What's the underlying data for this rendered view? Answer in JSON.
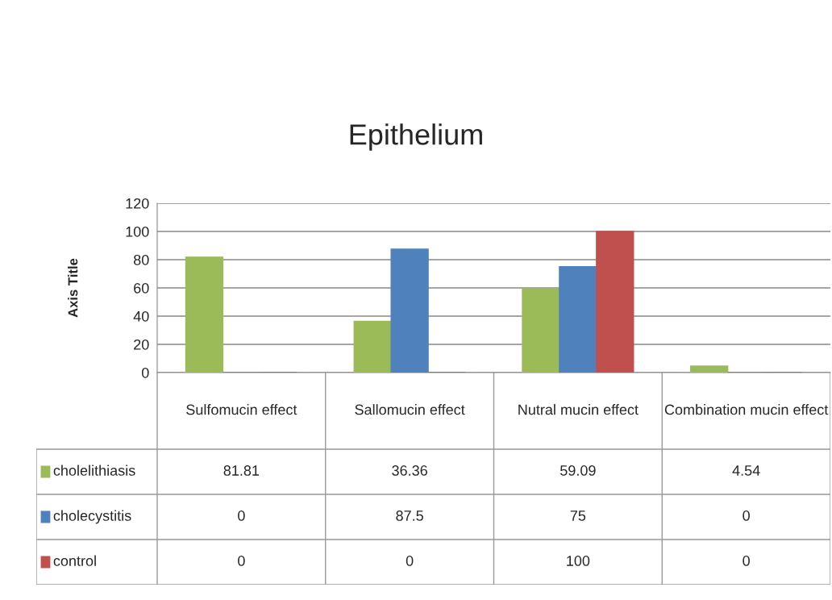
{
  "chart_data": {
    "type": "bar",
    "title": "Epithelium",
    "ylabel": "Axis Title",
    "categories": [
      "Sulfomucin effect",
      "Sallomucin effect",
      "Nutral mucin effect",
      "Combination mucin effect"
    ],
    "series": [
      {
        "name": "cholelithiasis",
        "color": "#9bbb59",
        "values": [
          81.81,
          36.36,
          59.09,
          4.54
        ]
      },
      {
        "name": "cholecystitis",
        "color": "#4f81bd",
        "values": [
          0,
          87.5,
          75,
          0
        ]
      },
      {
        "name": "control",
        "color": "#c0504d",
        "values": [
          0,
          0,
          100,
          0
        ]
      }
    ],
    "ylim": [
      0,
      120
    ],
    "yticks": [
      0,
      20,
      40,
      60,
      80,
      100,
      120
    ],
    "grid": "y",
    "legend": "bottom",
    "data_labels": true
  }
}
